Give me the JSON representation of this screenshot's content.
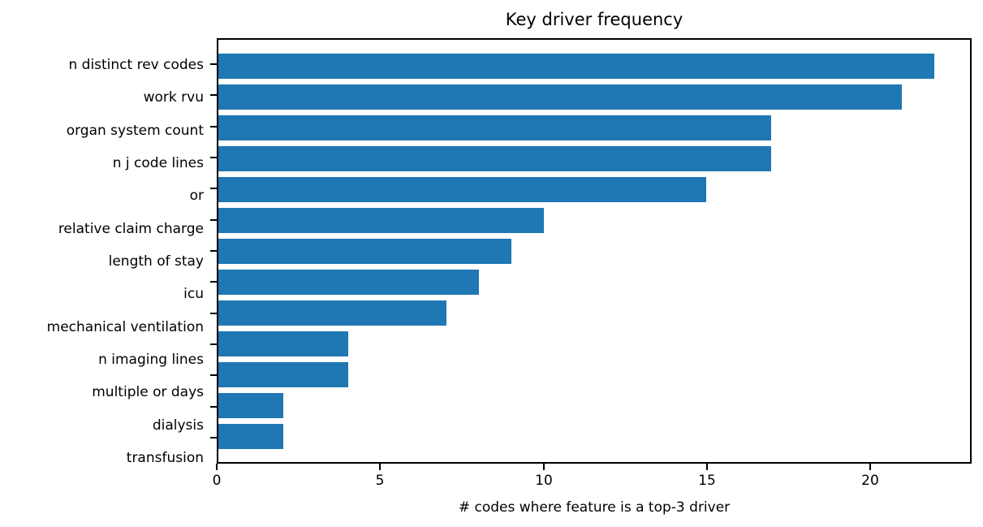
{
  "chart_data": {
    "type": "bar",
    "orientation": "horizontal",
    "title": "Key driver frequency",
    "xlabel": "# codes where feature is a top-3 driver",
    "ylabel": "",
    "categories": [
      "n distinct rev codes",
      "work rvu",
      "organ system count",
      "n j code lines",
      "or",
      "relative claim charge",
      "length of stay",
      "icu",
      "mechanical ventilation",
      "n imaging lines",
      "multiple or days",
      "dialysis",
      "transfusion"
    ],
    "values": [
      22,
      21,
      17,
      17,
      15,
      10,
      9,
      8,
      7,
      4,
      4,
      2,
      2
    ],
    "xlim": [
      0,
      23.1
    ],
    "xticks": [
      0,
      5,
      10,
      15,
      20
    ],
    "bar_color": "#1f77b4",
    "axis_color": "#000000",
    "text_color": "#000000",
    "grid": false,
    "legend_position": null
  }
}
